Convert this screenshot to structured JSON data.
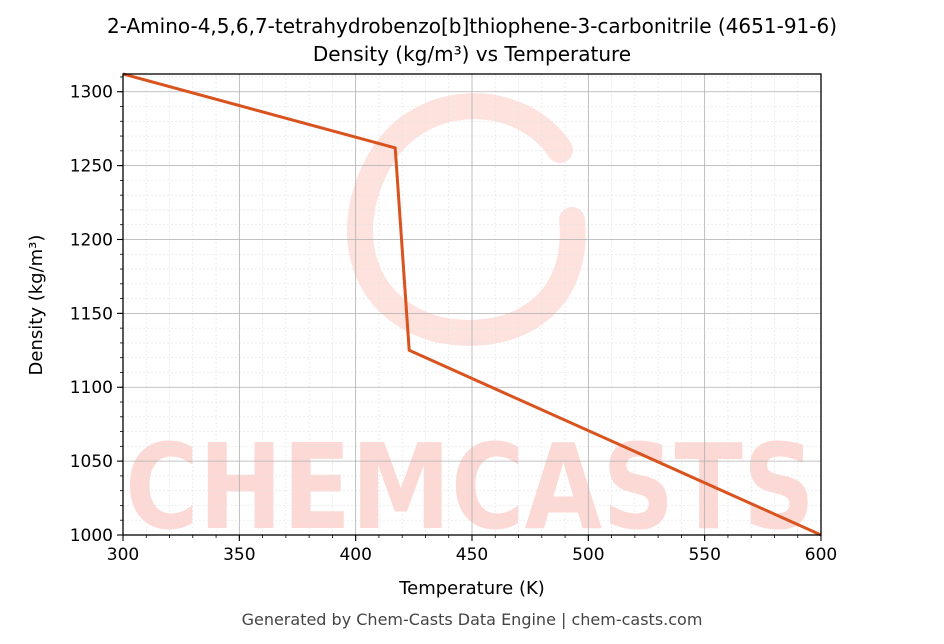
{
  "chart_data": {
    "type": "line",
    "title": "2-Amino-4,5,6,7-tetrahydrobenzo[b]thiophene-3-carbonitrile (4651-91-6)",
    "subtitle": "Density (kg/m³) vs Temperature",
    "xlabel": "Temperature (K)",
    "ylabel": "Density (kg/m³)",
    "xlim": [
      300,
      600
    ],
    "ylim": [
      1000,
      1312
    ],
    "xticks": [
      300,
      350,
      400,
      450,
      500,
      550,
      600
    ],
    "yticks": [
      1000,
      1050,
      1100,
      1150,
      1200,
      1250,
      1300
    ],
    "grid": true,
    "series": [
      {
        "color": "#d9531e",
        "x": [
          300,
          417,
          423,
          600
        ],
        "y": [
          1312,
          1262,
          1125,
          1000
        ]
      }
    ]
  },
  "watermark": {
    "text": "CHEMCASTS",
    "color": "#fcd9d4"
  },
  "footer": "Generated by Chem-Casts Data Engine | chem-casts.com"
}
